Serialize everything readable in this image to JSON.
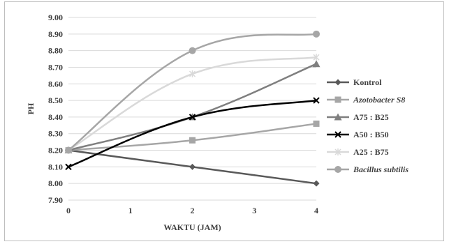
{
  "chart_data": {
    "type": "line",
    "title": "",
    "xlabel": "WAKTU (JAM)",
    "ylabel": "PH",
    "xlim": [
      0,
      4
    ],
    "ylim": [
      7.9,
      9.0
    ],
    "x_ticks": [
      "0",
      "1",
      "2",
      "3",
      "4"
    ],
    "y_ticks": [
      "7.90",
      "8.00",
      "8.10",
      "8.20",
      "8.30",
      "8.40",
      "8.50",
      "8.60",
      "8.70",
      "8.80",
      "8.90",
      "9.00"
    ],
    "grid": true,
    "legend_position": "right",
    "smooth": true,
    "series": [
      {
        "name": "Kontrol",
        "italic": false,
        "color": "#595959",
        "marker": "diamond",
        "x": [
          0,
          2,
          4
        ],
        "y": [
          8.2,
          8.1,
          8.0
        ]
      },
      {
        "name": "Azotobacter S8",
        "italic": true,
        "color": "#a6a6a6",
        "marker": "square",
        "x": [
          0,
          2,
          4
        ],
        "y": [
          8.2,
          8.26,
          8.36
        ]
      },
      {
        "name": "A75 : B25",
        "italic": false,
        "color": "#7f7f7f",
        "marker": "triangle",
        "x": [
          0,
          2,
          4
        ],
        "y": [
          8.2,
          8.4,
          8.72
        ]
      },
      {
        "name": "A50 : B50",
        "italic": false,
        "color": "#000000",
        "marker": "x",
        "x": [
          0,
          2,
          4
        ],
        "y": [
          8.1,
          8.4,
          8.5
        ]
      },
      {
        "name": "A25 : B75",
        "italic": false,
        "color": "#d9d9d9",
        "marker": "asterisk",
        "x": [
          0,
          2,
          4
        ],
        "y": [
          8.2,
          8.66,
          8.76
        ]
      },
      {
        "name": "Bacillus subtilis",
        "italic": true,
        "color": "#a6a6a6",
        "marker": "circle",
        "x": [
          0,
          2,
          4
        ],
        "y": [
          8.2,
          8.8,
          8.9
        ]
      }
    ]
  }
}
